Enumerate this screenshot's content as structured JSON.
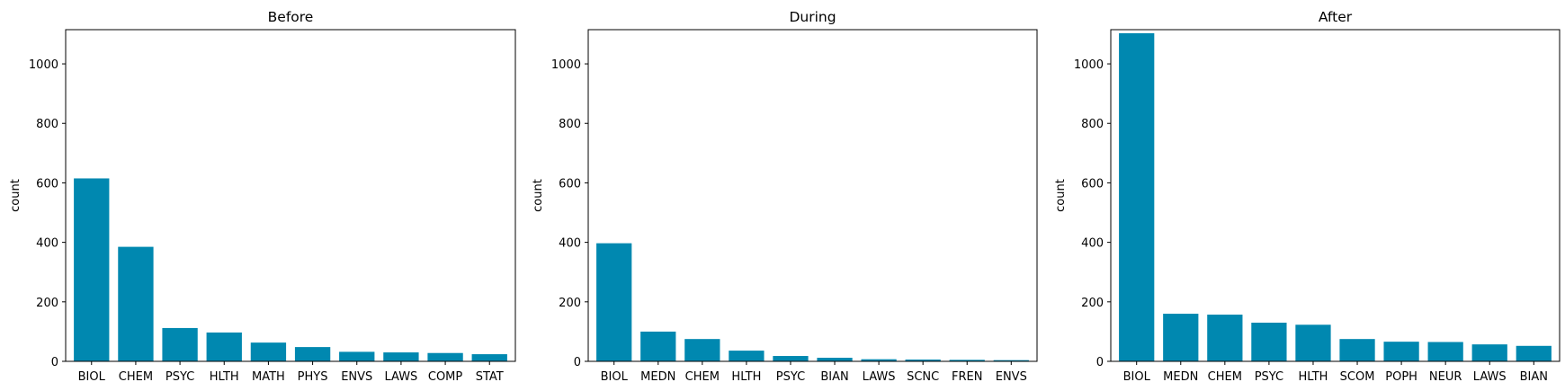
{
  "chart_data": [
    {
      "type": "bar",
      "title": "Before",
      "xlabel": "",
      "ylabel": "count",
      "ylim": [
        0,
        1115
      ],
      "yticks": [
        0,
        200,
        400,
        600,
        800,
        1000
      ],
      "categories": [
        "BIOL",
        "CHEM",
        "PSYC",
        "HLTH",
        "MATH",
        "PHYS",
        "ENVS",
        "LAWS",
        "COMP",
        "STAT"
      ],
      "values": [
        615,
        385,
        112,
        97,
        63,
        48,
        32,
        30,
        28,
        24
      ],
      "color": "#0088b0",
      "grid": false
    },
    {
      "type": "bar",
      "title": "During",
      "xlabel": "",
      "ylabel": "count",
      "ylim": [
        0,
        1115
      ],
      "yticks": [
        0,
        200,
        400,
        600,
        800,
        1000
      ],
      "categories": [
        "BIOL",
        "MEDN",
        "CHEM",
        "HLTH",
        "PSYC",
        "BIAN",
        "LAWS",
        "SCNC",
        "FREN",
        "ENVS"
      ],
      "values": [
        397,
        100,
        75,
        36,
        18,
        12,
        7,
        6,
        5,
        4
      ],
      "color": "#0088b0",
      "grid": false
    },
    {
      "type": "bar",
      "title": "After",
      "xlabel": "",
      "ylabel": "count",
      "ylim": [
        0,
        1115
      ],
      "yticks": [
        0,
        200,
        400,
        600,
        800,
        1000
      ],
      "categories": [
        "BIOL",
        "MEDN",
        "CHEM",
        "PSYC",
        "HLTH",
        "SCOM",
        "POPH",
        "NEUR",
        "LAWS",
        "BIAN"
      ],
      "values": [
        1103,
        160,
        157,
        130,
        123,
        75,
        66,
        65,
        57,
        52
      ],
      "color": "#0088b0",
      "grid": false
    }
  ]
}
